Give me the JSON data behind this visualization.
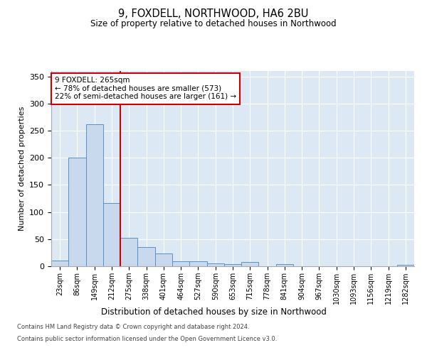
{
  "title": "9, FOXDELL, NORTHWOOD, HA6 2BU",
  "subtitle": "Size of property relative to detached houses in Northwood",
  "xlabel": "Distribution of detached houses by size in Northwood",
  "ylabel": "Number of detached properties",
  "categories": [
    "23sqm",
    "86sqm",
    "149sqm",
    "212sqm",
    "275sqm",
    "338sqm",
    "401sqm",
    "464sqm",
    "527sqm",
    "590sqm",
    "653sqm",
    "715sqm",
    "778sqm",
    "841sqm",
    "904sqm",
    "967sqm",
    "1030sqm",
    "1093sqm",
    "1156sqm",
    "1219sqm",
    "1282sqm"
  ],
  "values": [
    11,
    200,
    262,
    117,
    53,
    35,
    24,
    9,
    9,
    5,
    4,
    8,
    0,
    4,
    0,
    0,
    0,
    0,
    0,
    0,
    3
  ],
  "bar_color": "#c9d9ed",
  "bar_edge_color": "#5b8fc9",
  "vline_x_idx": 3,
  "vline_color": "#cc0000",
  "annotation_text": "9 FOXDELL: 265sqm\n← 78% of detached houses are smaller (573)\n22% of semi-detached houses are larger (161) →",
  "annotation_box_color": "#ffffff",
  "annotation_box_edge": "#cc0000",
  "ylim": [
    0,
    360
  ],
  "yticks": [
    0,
    50,
    100,
    150,
    200,
    250,
    300,
    350
  ],
  "background_color": "#dde8f5",
  "footer_line1": "Contains HM Land Registry data © Crown copyright and database right 2024.",
  "footer_line2": "Contains public sector information licensed under the Open Government Licence v3.0."
}
